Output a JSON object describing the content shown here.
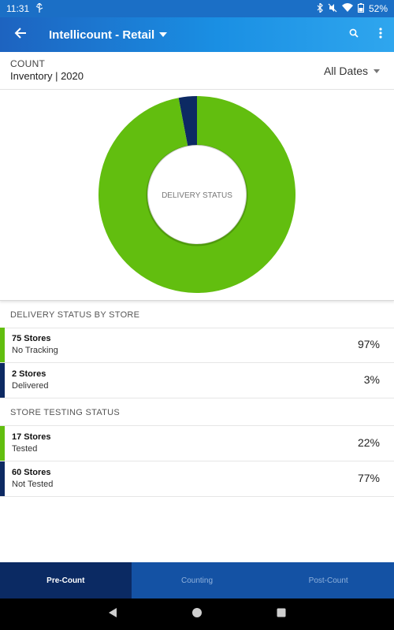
{
  "status_bar": {
    "time": "11:31",
    "battery": "52%"
  },
  "app_bar": {
    "title": "Intellicount - Retail"
  },
  "header": {
    "label": "COUNT",
    "subtitle": "Inventory | 2020",
    "date_filter": "All Dates"
  },
  "chart_data": {
    "type": "pie",
    "title": "",
    "center_label": "DELIVERY STATUS",
    "categories": [
      "No Tracking",
      "Delivered"
    ],
    "values": [
      97,
      3
    ],
    "colors": [
      "#62be0f",
      "#0d2a63"
    ]
  },
  "sections": [
    {
      "title": "DELIVERY STATUS BY STORE",
      "rows": [
        {
          "main": "75 Stores",
          "sub": "No Tracking",
          "pct": "97%",
          "color": "#62be0f"
        },
        {
          "main": "2 Stores",
          "sub": "Delivered",
          "pct": "3%",
          "color": "#0d2a63"
        }
      ]
    },
    {
      "title": "STORE TESTING STATUS",
      "rows": [
        {
          "main": "17 Stores",
          "sub": "Tested",
          "pct": "22%",
          "color": "#62be0f"
        },
        {
          "main": "60 Stores",
          "sub": "Not Tested",
          "pct": "77%",
          "color": "#0d2a63"
        }
      ]
    }
  ],
  "bottom_nav": {
    "tabs": [
      "Pre-Count",
      "Counting",
      "Post-Count"
    ],
    "active": 0
  },
  "icons": {
    "back": "arrow-left-icon",
    "search": "search-icon",
    "more": "more-vert-icon",
    "nav_back": "triangle-back-icon",
    "nav_home": "circle-home-icon",
    "nav_recent": "square-recent-icon"
  }
}
